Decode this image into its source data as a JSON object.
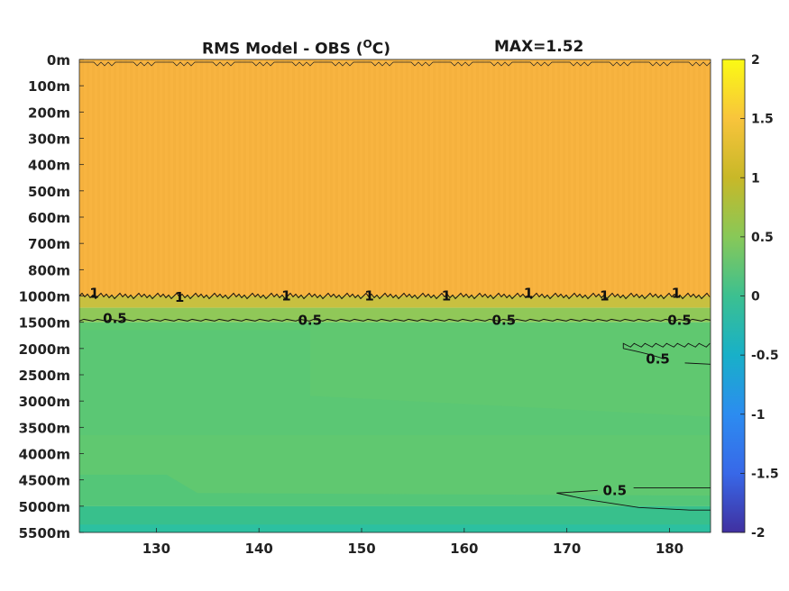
{
  "chart_data": {
    "type": "heatmap",
    "title": "RMS Model - OBS (",
    "title_unit": "O",
    "title_end": "C)",
    "max_label": "MAX=1.52",
    "x_ticks": [
      130,
      140,
      150,
      160,
      170,
      180
    ],
    "xlim": [
      122.5,
      184
    ],
    "y_ticks": [
      "0m",
      "100m",
      "200m",
      "300m",
      "400m",
      "500m",
      "600m",
      "700m",
      "800m",
      "1000m",
      "1500m",
      "2000m",
      "2500m",
      "3000m",
      "3500m",
      "4000m",
      "4500m",
      "5000m",
      "5500m"
    ],
    "colorbar": {
      "ticks": [
        "2",
        "1.5",
        "1",
        "0.5",
        "0",
        "-0.5",
        "-1",
        "-1.5",
        "-2"
      ],
      "range": [
        -2,
        2
      ],
      "colors": [
        "#fafa14",
        "#f8c43c",
        "#c8b828",
        "#88c858",
        "#3cc090",
        "#18b0c8",
        "#2c8cf0",
        "#3868e8",
        "#4030a0"
      ]
    },
    "bands": [
      {
        "from_level": 0,
        "to_level": 9,
        "value": 1.3,
        "color": "#f8b440"
      },
      {
        "from_level": 9,
        "to_level": 9.45,
        "value": 1.0,
        "color": "#c8c040"
      },
      {
        "from_level": 9.45,
        "to_level": 10,
        "value": 0.8,
        "color": "#90c858"
      },
      {
        "from_level": 10,
        "to_level": 17,
        "value": 0.6,
        "color": "#60c870"
      },
      {
        "from_level": 17,
        "to_level": 18,
        "value": 0.4,
        "color": "#38c08c"
      }
    ],
    "contour_labels": [
      {
        "text": "1",
        "x": 123.5,
        "level": 8.9
      },
      {
        "text": "1",
        "x": 131.8,
        "level": 9.05
      },
      {
        "text": "1",
        "x": 142.2,
        "level": 9.0
      },
      {
        "text": "1",
        "x": 150.3,
        "level": 9.0
      },
      {
        "text": "1",
        "x": 157.8,
        "level": 9.0
      },
      {
        "text": "1",
        "x": 165.8,
        "level": 8.9
      },
      {
        "text": "1",
        "x": 173.2,
        "level": 9.0
      },
      {
        "text": "1",
        "x": 180.2,
        "level": 8.9
      },
      {
        "text": "0.5",
        "x": 124.8,
        "level": 9.85
      },
      {
        "text": "0.5",
        "x": 143.8,
        "level": 9.92
      },
      {
        "text": "0.5",
        "x": 162.7,
        "level": 9.92
      },
      {
        "text": "0.5",
        "x": 179.8,
        "level": 9.92
      },
      {
        "text": "0.5",
        "x": 177.7,
        "level": 11.4
      },
      {
        "text": "0.5",
        "x": 173.5,
        "level": 16.4
      }
    ]
  }
}
